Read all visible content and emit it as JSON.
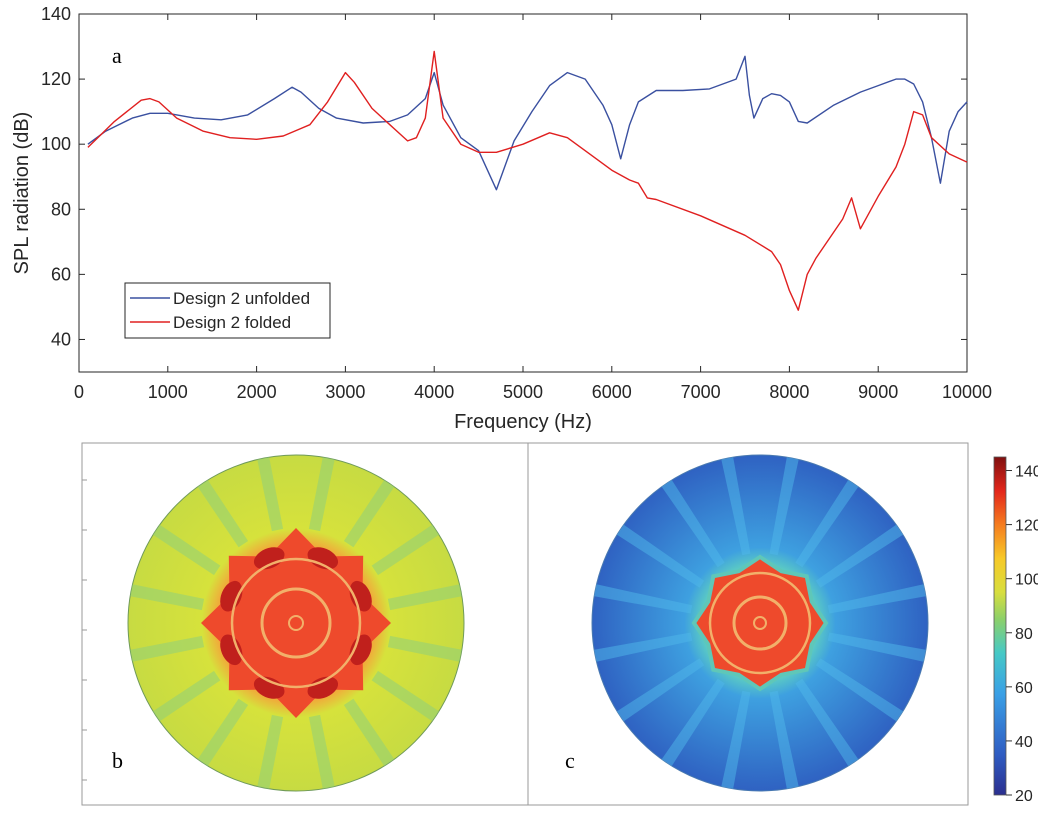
{
  "chart_data": [
    {
      "type": "line",
      "panel_label": "a",
      "xlabel": "Frequency (Hz)",
      "ylabel": "SPL radiation (dB)",
      "xlim": [
        0,
        10000
      ],
      "ylim": [
        30,
        140
      ],
      "xticks": [
        0,
        1000,
        2000,
        3000,
        4000,
        5000,
        6000,
        7000,
        8000,
        9000,
        10000
      ],
      "yticks": [
        40,
        60,
        80,
        100,
        120,
        140
      ],
      "grid": false,
      "legend_position": "bottom-left",
      "series": [
        {
          "name": "Design 2 unfolded",
          "color": "#3a50a0",
          "x": [
            100,
            300,
            600,
            800,
            1000,
            1300,
            1600,
            1900,
            2200,
            2400,
            2500,
            2700,
            2900,
            3200,
            3500,
            3700,
            3900,
            4000,
            4100,
            4300,
            4500,
            4700,
            4900,
            5100,
            5300,
            5500,
            5700,
            5900,
            6000,
            6100,
            6200,
            6300,
            6500,
            6800,
            7100,
            7400,
            7500,
            7550,
            7600,
            7700,
            7800,
            7900,
            8000,
            8100,
            8200,
            8500,
            8800,
            9000,
            9200,
            9300,
            9400,
            9500,
            9600,
            9700,
            9800,
            9900,
            10000
          ],
          "y": [
            100,
            104,
            108,
            109.5,
            109.5,
            108,
            107.5,
            109,
            114,
            117.5,
            116,
            111,
            108,
            106.5,
            107,
            109,
            114,
            122,
            112,
            102,
            98,
            86,
            101,
            110,
            118,
            122,
            120,
            112,
            106,
            95.5,
            106,
            113,
            116.5,
            116.5,
            117,
            120,
            127,
            115,
            108,
            114,
            115.5,
            115,
            113,
            107,
            106.5,
            112,
            116,
            118,
            120,
            120,
            118.5,
            113,
            102,
            88,
            104,
            110,
            113
          ]
        },
        {
          "name": "Design 2 folded",
          "color": "#e02020",
          "x": [
            100,
            400,
            700,
            800,
            900,
            1100,
            1400,
            1700,
            2000,
            2300,
            2600,
            2800,
            3000,
            3100,
            3300,
            3500,
            3700,
            3800,
            3900,
            4000,
            4100,
            4300,
            4500,
            4700,
            5000,
            5300,
            5500,
            5700,
            6000,
            6200,
            6300,
            6400,
            6500,
            7000,
            7500,
            7800,
            7900,
            8000,
            8100,
            8200,
            8300,
            8600,
            8700,
            8800,
            9000,
            9200,
            9300,
            9400,
            9500,
            9600,
            9800,
            10000
          ],
          "y": [
            99,
            107,
            113.5,
            114,
            113,
            108,
            104,
            102,
            101.5,
            102.5,
            106,
            113,
            122,
            119,
            111,
            106,
            101,
            102,
            108,
            128.5,
            108,
            100,
            97.5,
            97.5,
            100,
            103.5,
            102,
            98,
            92,
            89,
            88,
            83.5,
            83,
            78,
            72,
            67,
            63,
            55,
            49,
            60,
            65,
            77,
            83.5,
            74,
            84,
            93,
            100,
            110,
            109,
            102,
            97,
            94.5
          ]
        }
      ]
    },
    {
      "type": "heatmap",
      "panel_label": "b",
      "description": "circular SPL field map, folded/unfolded disc"
    },
    {
      "type": "heatmap",
      "panel_label": "c",
      "colorbar_ticks": [
        20,
        40,
        60,
        80,
        100,
        120,
        140
      ],
      "colorbar_range": [
        20,
        145
      ]
    }
  ]
}
